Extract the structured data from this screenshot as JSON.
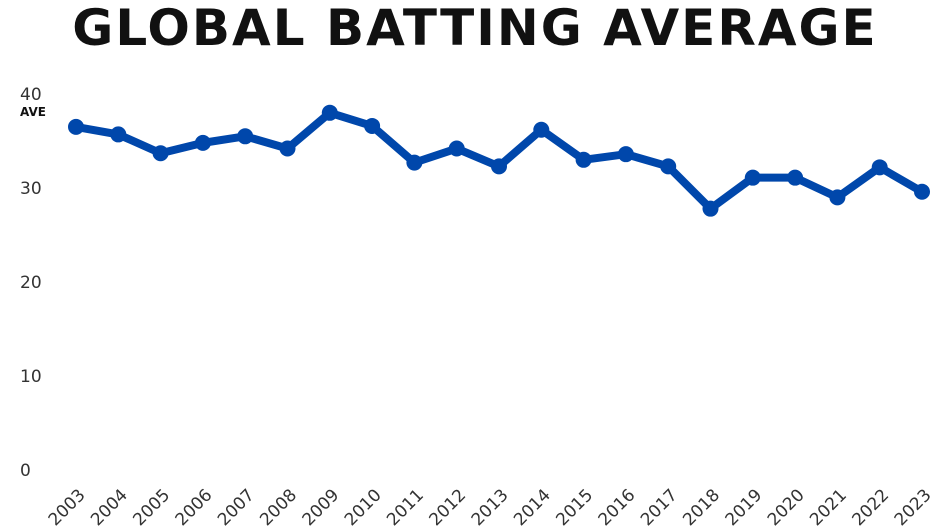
{
  "chart_data": {
    "type": "line",
    "title": "GLOBAL BATTING AVERAGE",
    "ylabel": "AVE",
    "xlabel": "",
    "ylim": [
      0,
      40
    ],
    "yticks": [
      0,
      10,
      20,
      30,
      40
    ],
    "grid": false,
    "line_color": "#0047AB",
    "categories": [
      "2003",
      "2004",
      "2005",
      "2006",
      "2007",
      "2008",
      "2009",
      "2010",
      "2011",
      "2012",
      "2013",
      "2014",
      "2015",
      "2016",
      "2017",
      "2018",
      "2019",
      "2020",
      "2021",
      "2022",
      "2023"
    ],
    "values": [
      36.5,
      35.7,
      33.7,
      34.8,
      35.5,
      34.2,
      38.0,
      36.6,
      32.7,
      34.2,
      32.3,
      36.2,
      33.0,
      33.6,
      32.3,
      27.8,
      31.1,
      31.1,
      29.0,
      32.2,
      29.6
    ]
  }
}
